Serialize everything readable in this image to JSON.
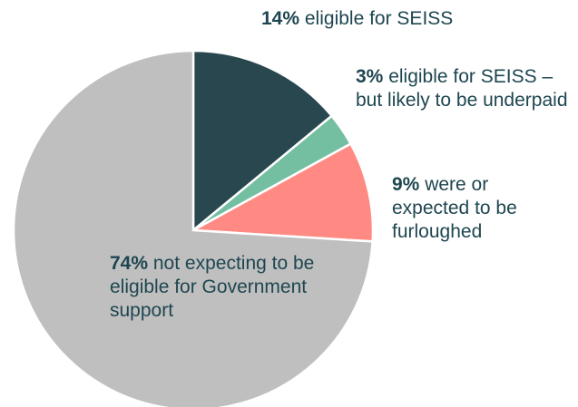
{
  "chart_data": {
    "type": "pie",
    "start_angle_deg": 0,
    "direction": "clockwise",
    "slices": [
      {
        "label": "eligible for SEISS",
        "percent_text": "14%",
        "value": 14,
        "color": "#29474f"
      },
      {
        "label": "eligible for SEISS – but likely to be underpaid",
        "percent_text": "3%",
        "value": 3,
        "color": "#74bfa1"
      },
      {
        "label": "were or expected to be furloughed",
        "percent_text": "9%",
        "value": 9,
        "color": "#ff8a84"
      },
      {
        "label": "not expecting to be eligible for Government support",
        "percent_text": "74%",
        "value": 74,
        "color": "#bfbfbf"
      }
    ]
  }
}
